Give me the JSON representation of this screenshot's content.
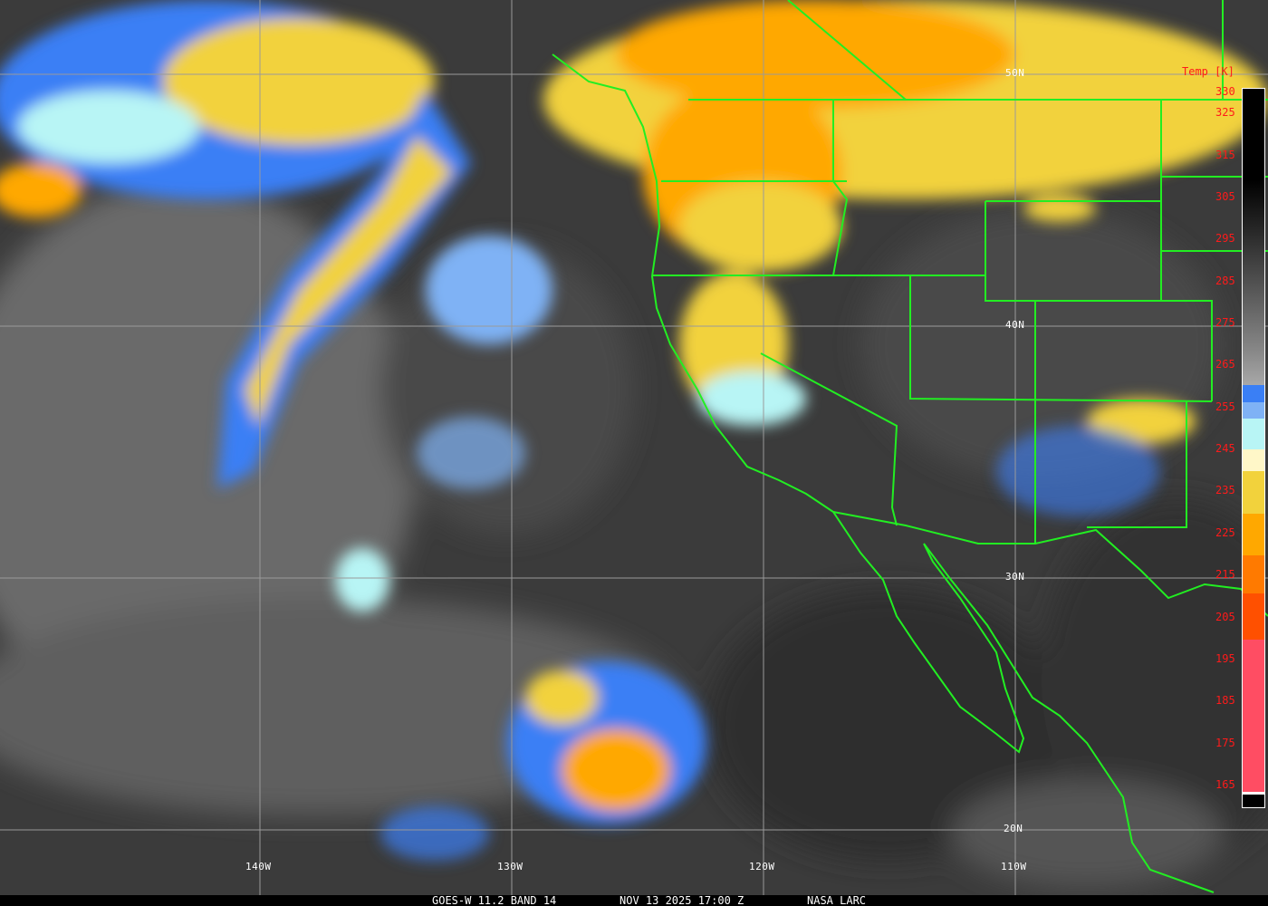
{
  "footer": {
    "satellite": "GOES-W 11.2 BAND 14",
    "datetime": "NOV 13 2025 17:00 Z",
    "credit": "NASA LARC"
  },
  "grid": {
    "latitudes": [
      "50N",
      "40N",
      "30N",
      "20N"
    ],
    "longitudes": [
      "140W",
      "130W",
      "120W",
      "110W"
    ]
  },
  "legend": {
    "title": "Temp [K]",
    "ticks": [
      "330",
      "325",
      "315",
      "305",
      "295",
      "285",
      "275",
      "265",
      "255",
      "245",
      "235",
      "225",
      "215",
      "205",
      "195",
      "185",
      "175",
      "165"
    ],
    "colors": {
      "cold_blue": "#3a7ff5",
      "light_blue": "#7fb2f5",
      "cyan": "#b8f5f5",
      "cream": "#fff7c8",
      "yellow": "#f2d23c",
      "orange": "#ffa800",
      "dark_orange": "#ff7a00",
      "red_orange": "#ff5000",
      "pink": "#ff4d63"
    }
  },
  "colors": {
    "borders": "#22ee22",
    "tick_labels": "#ff1a1a",
    "grid": "#9a9a9a"
  }
}
